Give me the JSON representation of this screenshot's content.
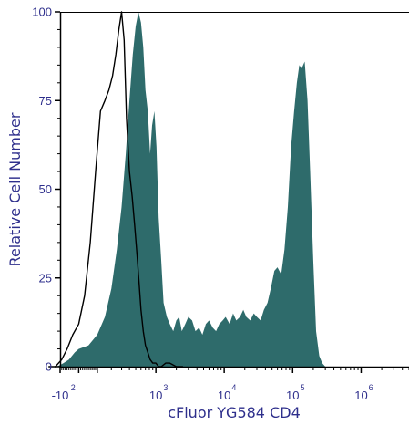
{
  "chart_data": {
    "type": "area",
    "xlabel": "cFluor YG584 CD4",
    "ylabel": "Relative Cell Number",
    "ylim": [
      0,
      100
    ],
    "xlim": [
      -100,
      5000000
    ],
    "x_scale": "biexponential",
    "y_ticks": [
      {
        "value": 0,
        "label": "0"
      },
      {
        "value": 25,
        "label": "25"
      },
      {
        "value": 50,
        "label": "50"
      },
      {
        "value": 75,
        "label": "75"
      },
      {
        "value": 100,
        "label": "100"
      }
    ],
    "x_tick_labels": [
      {
        "value": -100,
        "base": "-10",
        "exp": "2"
      },
      {
        "value": 1000,
        "base": "10",
        "exp": "3"
      },
      {
        "value": 10000,
        "base": "10",
        "exp": "4"
      },
      {
        "value": 100000,
        "base": "10",
        "exp": "5"
      },
      {
        "value": 1000000,
        "base": "10",
        "exp": "6"
      }
    ],
    "colors": {
      "stained_fill": "#2e6b6b",
      "control_line": "#000000",
      "text": "#2e2f8c",
      "axis": "#000000"
    },
    "series": [
      {
        "style": "filled",
        "x": [
          -180,
          -120,
          -80,
          -50,
          -20,
          0,
          50,
          100,
          150,
          200,
          250,
          300,
          350,
          400,
          450,
          500,
          550,
          600,
          650,
          700,
          760,
          820,
          880,
          950,
          1020,
          1100,
          1200,
          1300,
          1450,
          1600,
          1800,
          2000,
          2200,
          2400,
          2700,
          3000,
          3400,
          3800,
          4300,
          4800,
          5400,
          6000,
          6800,
          7600,
          8500,
          9500,
          10500,
          12000,
          13500,
          15000,
          17000,
          19000,
          21000,
          24000,
          27000,
          30000,
          34000,
          38000,
          43000,
          48000,
          54000,
          60000,
          68000,
          76000,
          85000,
          95000,
          105000,
          115000,
          125000,
          135000,
          150000,
          165000,
          180000,
          200000,
          220000,
          245000,
          270000,
          300000,
          350000,
          400000
        ],
        "y": [
          0,
          0,
          1,
          2,
          4,
          5,
          6,
          9,
          14,
          22,
          33,
          45,
          60,
          75,
          88,
          96,
          100,
          97,
          90,
          78,
          72,
          60,
          68,
          72,
          62,
          42,
          30,
          18,
          14,
          12,
          10,
          13,
          14,
          10,
          12,
          14,
          13,
          10,
          11,
          9,
          12,
          13,
          11,
          10,
          12,
          13,
          14,
          12,
          15,
          13,
          14,
          16,
          14,
          13,
          15,
          14,
          13,
          16,
          18,
          22,
          27,
          28,
          26,
          33,
          45,
          62,
          72,
          80,
          85,
          84,
          86,
          75,
          55,
          30,
          10,
          3,
          1,
          0,
          0,
          0
        ]
      },
      {
        "style": "line",
        "x": [
          -180,
          -130,
          -90,
          -60,
          -30,
          0,
          30,
          60,
          90,
          120,
          150,
          180,
          210,
          240,
          270,
          300,
          330,
          360,
          400,
          440,
          480,
          520,
          560,
          600,
          650,
          700,
          760,
          820,
          900,
          1000,
          1100,
          1200,
          1400,
          1600,
          2000,
          2500
        ],
        "y": [
          0,
          0,
          2,
          5,
          9,
          12,
          20,
          35,
          55,
          72,
          75,
          78,
          82,
          88,
          95,
          100,
          92,
          70,
          55,
          48,
          40,
          32,
          24,
          16,
          10,
          6,
          4,
          2,
          1,
          1,
          0,
          0,
          1,
          1,
          0,
          0
        ]
      }
    ]
  }
}
